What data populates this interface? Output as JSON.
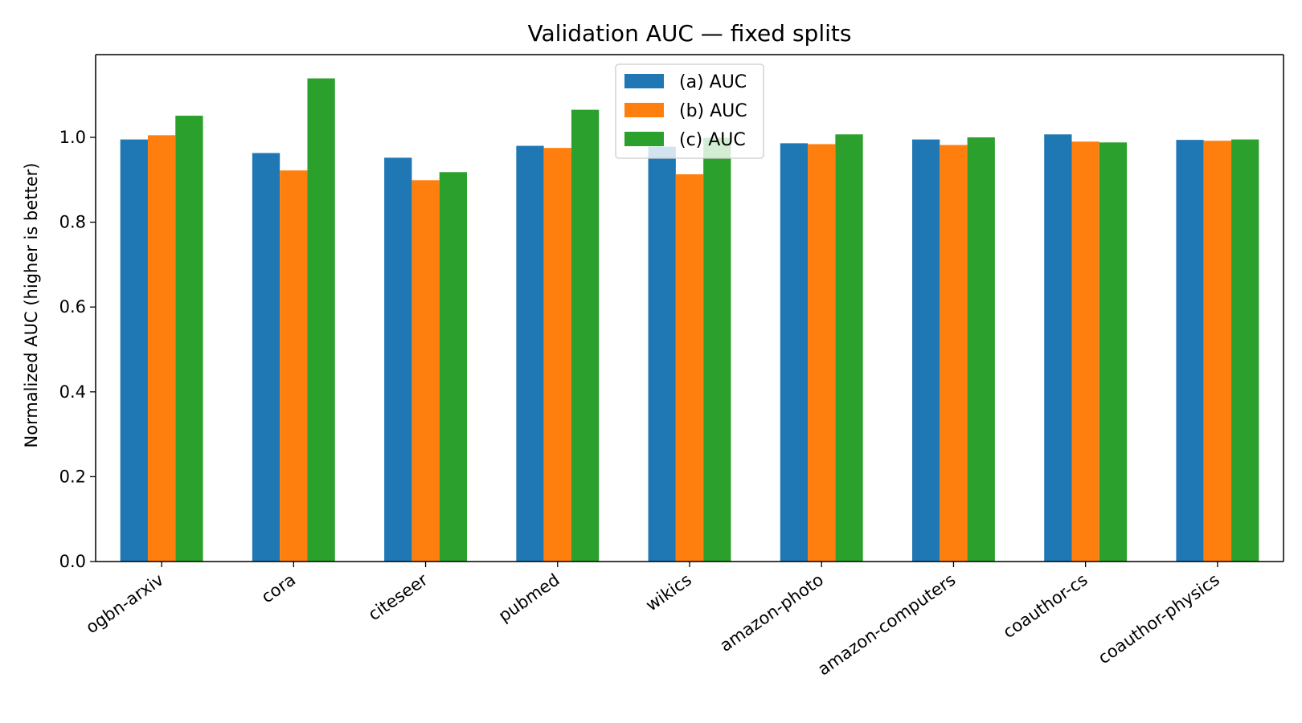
{
  "chart_data": {
    "type": "bar",
    "title": "Validation AUC — fixed splits",
    "xlabel": "",
    "ylabel": "Normalized AUC (higher is better)",
    "ylim": [
      0,
      1.195
    ],
    "yticks": [
      0.0,
      0.2,
      0.4,
      0.6,
      0.8,
      1.0
    ],
    "ytick_labels": [
      "0.0",
      "0.2",
      "0.4",
      "0.6",
      "0.8",
      "1.0"
    ],
    "categories": [
      "ogbn-arxiv",
      "cora",
      "citeseer",
      "pubmed",
      "wikics",
      "amazon-photo",
      "amazon-computers",
      "coauthor-cs",
      "coauthor-physics"
    ],
    "series": [
      {
        "name": "(a) AUC",
        "color": "#1f77b4",
        "values": [
          0.995,
          0.963,
          0.952,
          0.98,
          0.978,
          0.986,
          0.995,
          1.007,
          0.994
        ]
      },
      {
        "name": "(b) AUC",
        "color": "#ff7f0e",
        "values": [
          1.005,
          0.922,
          0.899,
          0.975,
          0.913,
          0.984,
          0.982,
          0.99,
          0.992
        ]
      },
      {
        "name": "(c) AUC",
        "color": "#2ca02c",
        "values": [
          1.051,
          1.139,
          0.918,
          1.065,
          0.999,
          1.007,
          1.0,
          0.988,
          0.995
        ]
      }
    ],
    "legend_position": "upper center",
    "grid": false
  }
}
